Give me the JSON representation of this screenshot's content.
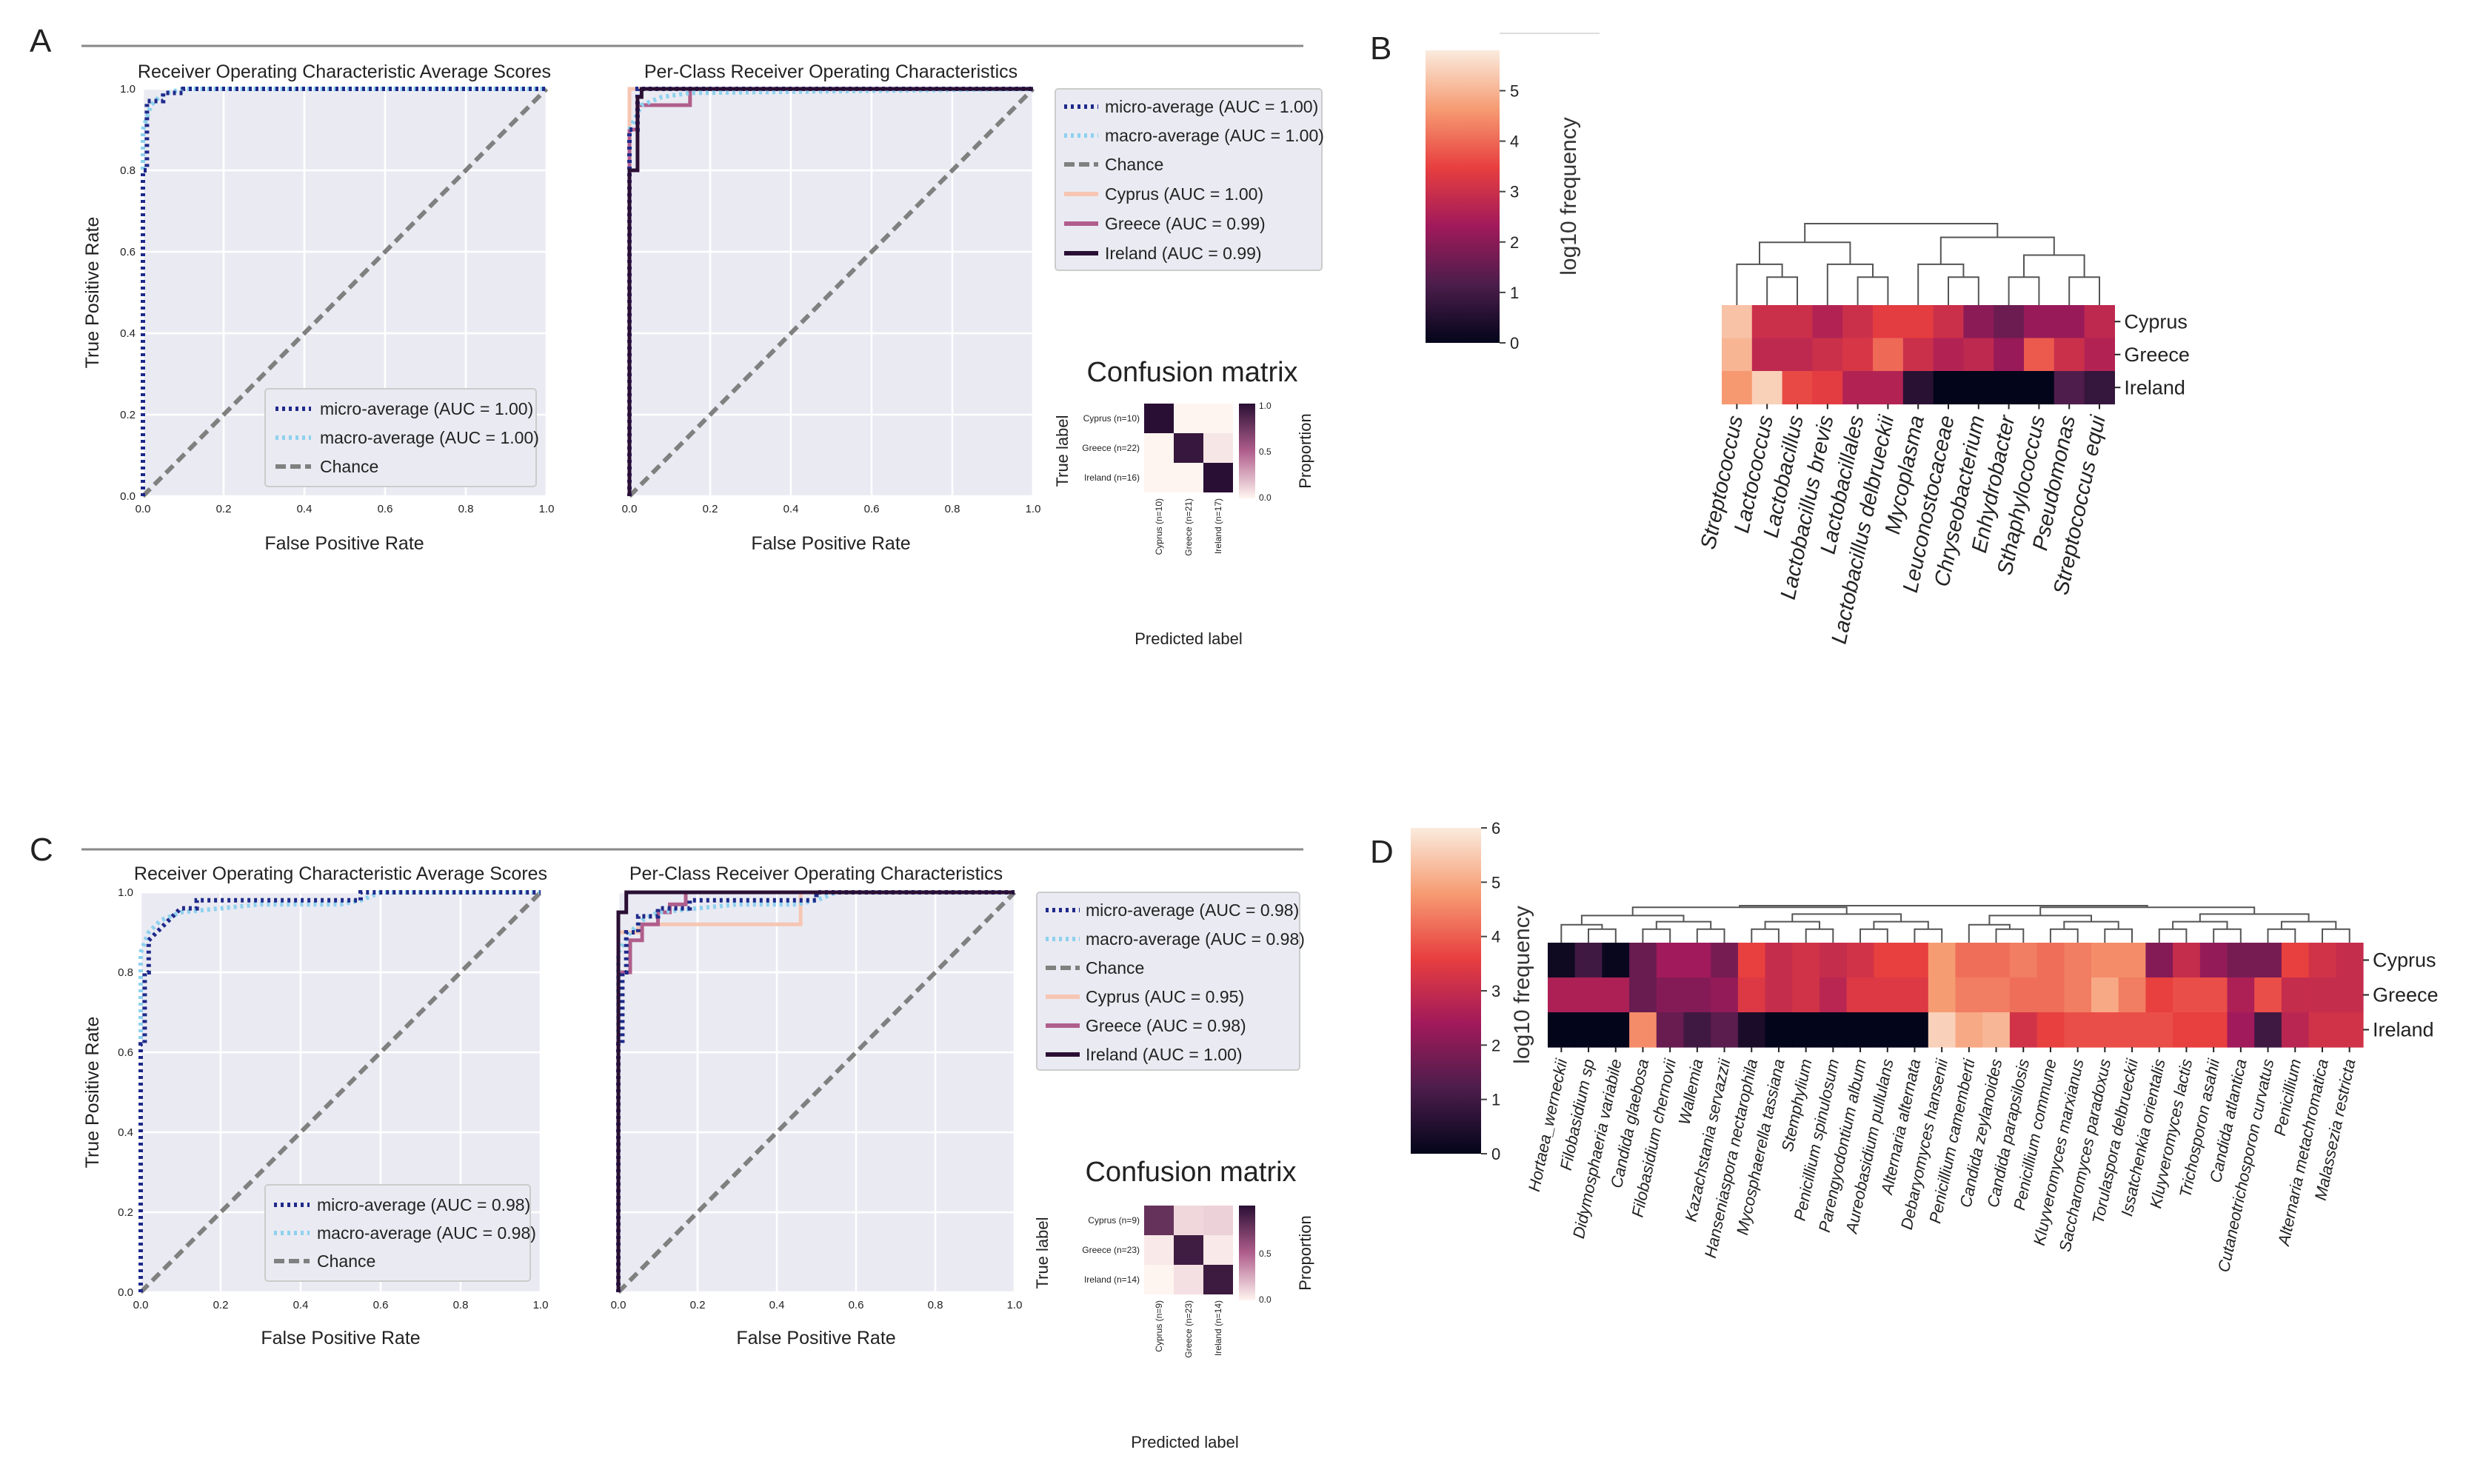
{
  "panels": {
    "A": "A",
    "B": "B",
    "C": "C",
    "D": "D"
  },
  "roc_text": {
    "avg_title": "Receiver Operating Characteristic Average Scores",
    "perclass_title": "Per-Class Receiver Operating Characteristics",
    "xlabel": "False Positive Rate",
    "ylabel": "True Positive Rate",
    "chance": "Chance"
  },
  "cm_text": {
    "title": "Confusion matrix",
    "xlabel": "Predicted label",
    "ylabel": "True label",
    "cbar_label": "Proportion"
  },
  "heat_text": {
    "cbar_label": "log10 frequency"
  },
  "colors": {
    "micro": "#1f2a8a",
    "macro": "#8ed1ee",
    "chance": "#808080",
    "cyprus": "#f6c6b3",
    "greece": "#b05e8c",
    "ireland": "#2a0f34"
  },
  "chart_data": [
    {
      "id": "A-avg",
      "type": "line",
      "title": "Receiver Operating Characteristic Average Scores",
      "xlabel": "False Positive Rate",
      "ylabel": "True Positive Rate",
      "xlim": [
        0,
        1
      ],
      "ylim": [
        0,
        1
      ],
      "grid": true,
      "xticks": [
        "0.0",
        "0.2",
        "0.4",
        "0.6",
        "0.8",
        "1.0"
      ],
      "yticks": [
        "0.0",
        "0.2",
        "0.4",
        "0.6",
        "0.8",
        "1.0"
      ],
      "legend_position": "lower-right",
      "series": [
        {
          "key": "micro",
          "name": "micro-average (AUC = 1.00)",
          "x": [
            0,
            0,
            0.01,
            0.01,
            0.05,
            0.05,
            0.1,
            0.1,
            1
          ],
          "y": [
            0,
            0.8,
            0.8,
            0.97,
            0.97,
            0.99,
            0.99,
            1,
            1
          ]
        },
        {
          "key": "macro",
          "name": "macro-average (AUC = 1.00)",
          "x": [
            0,
            0,
            0.02,
            0.04,
            0.06,
            0.1,
            1
          ],
          "y": [
            0,
            0.9,
            0.96,
            0.98,
            0.99,
            1,
            1
          ]
        },
        {
          "key": "chance",
          "name": "Chance",
          "x": [
            0,
            1
          ],
          "y": [
            0,
            1
          ]
        }
      ]
    },
    {
      "id": "A-per",
      "type": "line",
      "title": "Per-Class Receiver Operating Characteristics",
      "xlabel": "False Positive Rate",
      "ylabel": "",
      "xlim": [
        0,
        1
      ],
      "ylim": [
        0,
        1
      ],
      "grid": true,
      "xticks": [
        "0.0",
        "0.2",
        "0.4",
        "0.6",
        "0.8",
        "1.0"
      ],
      "yticks": [],
      "legend_position": "outside-right",
      "series": [
        {
          "key": "micro",
          "name": "micro-average (AUC = 1.00)",
          "x": [
            0,
            0,
            0.02,
            0.02,
            1
          ],
          "y": [
            0,
            0.9,
            0.9,
            1,
            1
          ]
        },
        {
          "key": "macro",
          "name": "macro-average (AUC = 1.00)",
          "x": [
            0,
            0,
            0.03,
            0.08,
            0.15,
            1
          ],
          "y": [
            0,
            0.9,
            0.96,
            0.98,
            0.99,
            1
          ]
        },
        {
          "key": "chance",
          "name": "Chance",
          "x": [
            0,
            1
          ],
          "y": [
            0,
            1
          ]
        },
        {
          "key": "cyprus",
          "name": "Cyprus (AUC = 1.00)",
          "x": [
            0,
            0,
            1
          ],
          "y": [
            0,
            1,
            1
          ]
        },
        {
          "key": "greece",
          "name": "Greece (AUC = 0.99)",
          "x": [
            0,
            0,
            0.02,
            0.02,
            0.15,
            0.15,
            1
          ],
          "y": [
            0,
            0.9,
            0.9,
            0.96,
            0.96,
            1,
            1
          ]
        },
        {
          "key": "ireland",
          "name": "Ireland (AUC = 0.99)",
          "x": [
            0,
            0,
            0.02,
            0.02,
            0.03,
            0.03,
            1
          ],
          "y": [
            0,
            0.8,
            0.8,
            0.98,
            0.98,
            1,
            1
          ]
        }
      ]
    },
    {
      "id": "A-cm",
      "type": "heatmap",
      "title": "Confusion matrix",
      "xlabel": "Predicted label",
      "ylabel": "True label",
      "rows": [
        "Cyprus (n=10)",
        "Greece (n=22)",
        "Ireland (n=16)"
      ],
      "cols": [
        "Cyprus (n=10)",
        "Greece (n=21)",
        "Ireland (n=17)"
      ],
      "values": [
        [
          1.0,
          0.0,
          0.0
        ],
        [
          0.0,
          0.95,
          0.05
        ],
        [
          0.0,
          0.0,
          1.0
        ]
      ],
      "cbar_label": "Proportion",
      "cbar_ticks": [
        "1.0",
        "0.5",
        "0.0"
      ],
      "vmin": 0,
      "vmax": 1
    },
    {
      "id": "B",
      "type": "heatmap",
      "cbar_label": "log10 frequency",
      "cbar_ticks": [
        "0",
        "1",
        "2",
        "3",
        "4",
        "5"
      ],
      "vmin": 0,
      "vmax": 5.8,
      "rows": [
        "Cyprus",
        "Greece",
        "Ireland"
      ],
      "cols": [
        "Streptococcus",
        "Lactococcus",
        "Lactobacillus",
        "Lactobacillus brevis",
        "Lactobacillales",
        "Lactobacillus delbrueckii",
        "Mycoplasma",
        "Leuconostocaceae",
        "Chryseobacterium",
        "Enhydrobacter",
        "Sthaphylococcus",
        "Pseudomonas",
        "Streptococcus equi"
      ],
      "values": [
        [
          5.2,
          3.0,
          3.0,
          2.6,
          3.0,
          3.4,
          3.4,
          3.0,
          2.0,
          1.6,
          2.2,
          2.2,
          2.8
        ],
        [
          5.0,
          2.8,
          2.8,
          3.0,
          3.2,
          4.0,
          3.0,
          2.6,
          2.8,
          2.2,
          3.8,
          3.0,
          2.6
        ],
        [
          4.6,
          5.4,
          3.6,
          3.4,
          2.6,
          2.6,
          0.6,
          0.0,
          0.0,
          0.0,
          0.0,
          1.2,
          0.8
        ]
      ]
    },
    {
      "id": "C-avg",
      "type": "line",
      "title": "Receiver Operating Characteristic Average Scores",
      "xlabel": "False Positive Rate",
      "ylabel": "True Positive Rate",
      "xlim": [
        0,
        1
      ],
      "ylim": [
        0,
        1
      ],
      "grid": true,
      "xticks": [
        "0.0",
        "0.2",
        "0.4",
        "0.6",
        "0.8",
        "1.0"
      ],
      "yticks": [
        "0.0",
        "0.2",
        "0.4",
        "0.6",
        "0.8",
        "1.0"
      ],
      "legend_position": "lower-right",
      "series": [
        {
          "key": "micro",
          "name": "micro-average (AUC = 0.98)",
          "x": [
            0,
            0,
            0.01,
            0.01,
            0.02,
            0.02,
            0.04,
            0.06,
            0.08,
            0.1,
            0.14,
            0.14,
            0.3,
            0.5,
            0.55,
            0.55,
            1
          ],
          "y": [
            0,
            0.62,
            0.62,
            0.8,
            0.8,
            0.88,
            0.9,
            0.92,
            0.94,
            0.96,
            0.96,
            0.98,
            0.98,
            0.98,
            0.98,
            1,
            1
          ]
        },
        {
          "key": "macro",
          "name": "macro-average (AUC = 0.98)",
          "x": [
            0,
            0,
            0.02,
            0.05,
            0.1,
            0.2,
            0.3,
            0.5,
            0.55,
            0.6,
            1
          ],
          "y": [
            0,
            0.85,
            0.9,
            0.93,
            0.95,
            0.96,
            0.97,
            0.97,
            0.98,
            1,
            1
          ]
        },
        {
          "key": "chance",
          "name": "Chance",
          "x": [
            0,
            1
          ],
          "y": [
            0,
            1
          ]
        }
      ]
    },
    {
      "id": "C-per",
      "type": "line",
      "title": "Per-Class Receiver Operating Characteristics",
      "xlabel": "False Positive Rate",
      "ylabel": "",
      "xlim": [
        0,
        1
      ],
      "ylim": [
        0,
        1
      ],
      "grid": true,
      "xticks": [
        "0.0",
        "0.2",
        "0.4",
        "0.6",
        "0.8",
        "1.0"
      ],
      "yticks": [],
      "legend_position": "outside-right",
      "series": [
        {
          "key": "micro",
          "name": "micro-average (AUC = 0.98)",
          "x": [
            0,
            0,
            0.01,
            0.01,
            0.02,
            0.02,
            0.05,
            0.05,
            0.1,
            0.1,
            0.18,
            0.18,
            0.5,
            0.5,
            1
          ],
          "y": [
            0,
            0.62,
            0.62,
            0.8,
            0.8,
            0.9,
            0.9,
            0.94,
            0.94,
            0.96,
            0.96,
            0.98,
            0.98,
            1,
            1
          ]
        },
        {
          "key": "macro",
          "name": "macro-average (AUC = 0.98)",
          "x": [
            0,
            0,
            0.03,
            0.06,
            0.1,
            0.2,
            0.3,
            0.45,
            0.5,
            0.55,
            1
          ],
          "y": [
            0,
            0.85,
            0.9,
            0.93,
            0.95,
            0.96,
            0.97,
            0.97,
            0.98,
            1,
            1
          ]
        },
        {
          "key": "chance",
          "name": "Chance",
          "x": [
            0,
            1
          ],
          "y": [
            0,
            1
          ]
        },
        {
          "key": "cyprus",
          "name": "Cyprus (AUC = 0.95)",
          "x": [
            0,
            0,
            0.05,
            0.05,
            0.46,
            0.46,
            1
          ],
          "y": [
            0,
            0.9,
            0.9,
            0.92,
            0.92,
            1,
            1
          ]
        },
        {
          "key": "greece",
          "name": "Greece (AUC = 0.98)",
          "x": [
            0,
            0,
            0.03,
            0.03,
            0.06,
            0.06,
            0.1,
            0.1,
            0.13,
            0.13,
            0.17,
            0.17,
            1
          ],
          "y": [
            0,
            0.8,
            0.8,
            0.88,
            0.88,
            0.92,
            0.92,
            0.95,
            0.95,
            0.97,
            0.97,
            1,
            1
          ]
        },
        {
          "key": "ireland",
          "name": "Ireland (AUC = 1.00)",
          "x": [
            0,
            0,
            0.02,
            0.02,
            1
          ],
          "y": [
            0,
            0.95,
            0.95,
            1,
            1
          ]
        }
      ]
    },
    {
      "id": "C-cm",
      "type": "heatmap",
      "title": "Confusion matrix",
      "xlabel": "Predicted label",
      "ylabel": "True label",
      "rows": [
        "Cyprus (n=9)",
        "Greece (n=23)",
        "Ireland (n=14)"
      ],
      "cols": [
        "Cyprus (n=9)",
        "Greece (n=23)",
        "Ireland (n=14)"
      ],
      "values": [
        [
          0.78,
          0.1,
          0.12
        ],
        [
          0.04,
          0.92,
          0.04
        ],
        [
          0.0,
          0.07,
          0.93
        ]
      ],
      "cbar_label": "Proportion",
      "cbar_ticks": [
        "0.5",
        "0.0"
      ],
      "vmin": 0,
      "vmax": 1
    },
    {
      "id": "D",
      "type": "heatmap",
      "cbar_label": "log10 frequency",
      "cbar_ticks": [
        "0",
        "1",
        "2",
        "3",
        "4",
        "5",
        "6"
      ],
      "vmin": 0,
      "vmax": 6,
      "rows": [
        "Cyprus",
        "Greece",
        "Ireland"
      ],
      "cols": [
        "Hortaea_werneckii",
        "Filobasidium sp",
        "Didymosphaeria variabile",
        "Candida glaebosa",
        "Filobasidium chernovii",
        "Wallemia",
        "Kazachstania servazzii",
        "Hanseniaspora nectarophila",
        "Mycosphaerella tassiana",
        "Stemphylium",
        "Penicillium spinulosum",
        "Parengyodontium album",
        "Aureobasidium pullulans",
        "Alternaria alternata",
        "Debaryomyces hansenii",
        "Penicillium camemberti",
        "Candida zeylanoides",
        "Candida parapsilosis",
        "Penicillium commune",
        "Kluyveromyces marxianus",
        "Saccharomyces paradoxus",
        "Torulaspora delbrueckii",
        "Issatchenkia orientalis",
        "Kluyveromyces lactis",
        "Trichosporon asahii",
        "Candida atlantica",
        "Cutaneotrichosporon curvatus",
        "Penicillium",
        "Alternaria metachromatica",
        "Malassezia restricta"
      ],
      "values": [
        [
          0.2,
          1.0,
          0.1,
          1.6,
          2.4,
          2.4,
          1.8,
          3.6,
          3.0,
          3.2,
          3.0,
          3.2,
          3.6,
          3.6,
          4.8,
          4.2,
          4.2,
          4.4,
          4.2,
          4.4,
          4.6,
          4.6,
          2.0,
          3.0,
          2.2,
          1.8,
          1.8,
          3.6,
          3.2,
          3.0
        ],
        [
          2.6,
          2.6,
          2.6,
          1.6,
          2.0,
          2.0,
          2.2,
          3.4,
          3.0,
          3.2,
          2.8,
          3.4,
          3.4,
          3.4,
          4.8,
          4.4,
          4.4,
          4.2,
          4.2,
          4.4,
          5.0,
          4.4,
          3.6,
          3.8,
          3.8,
          2.6,
          3.8,
          3.0,
          3.0,
          3.0
        ],
        [
          0.0,
          0.0,
          0.0,
          4.6,
          1.6,
          1.0,
          1.4,
          0.4,
          0.0,
          0.0,
          0.0,
          0.0,
          0.0,
          0.0,
          5.6,
          5.0,
          5.2,
          3.2,
          3.6,
          3.8,
          3.8,
          3.8,
          3.8,
          3.6,
          3.6,
          2.4,
          1.0,
          2.8,
          3.2,
          3.2
        ]
      ]
    }
  ]
}
